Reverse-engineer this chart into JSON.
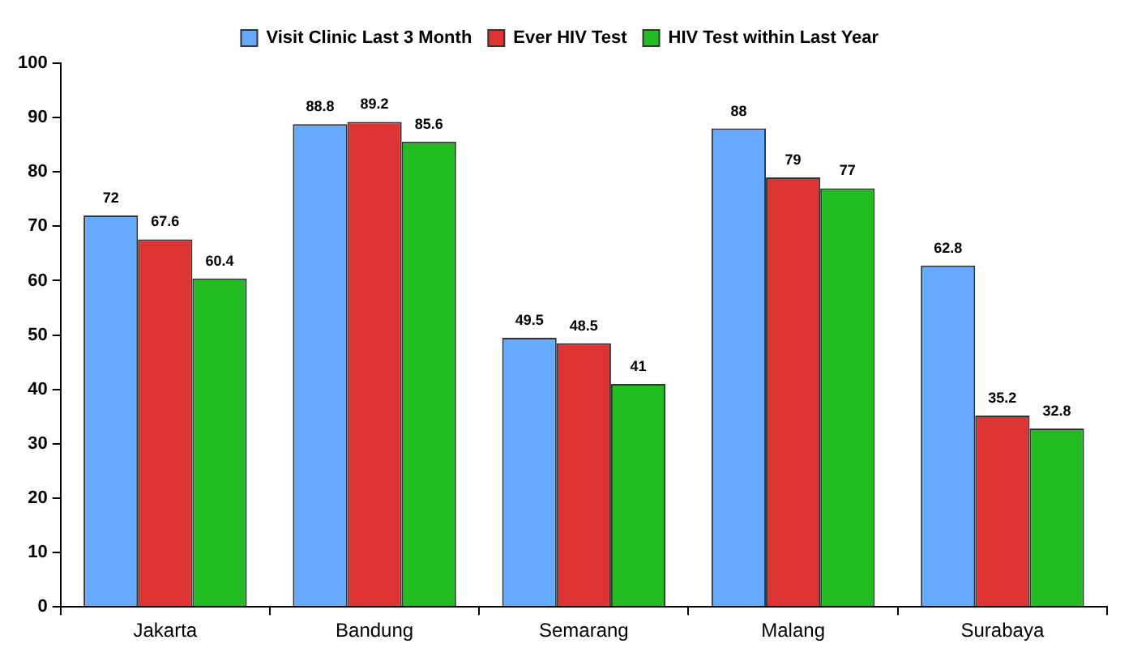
{
  "chart_data": {
    "type": "bar",
    "categories": [
      "Jakarta",
      "Bandung",
      "Semarang",
      "Malang",
      "Surabaya"
    ],
    "series": [
      {
        "name": "Visit Clinic Last 3 Month",
        "color": "#66aaff",
        "values": [
          72,
          88.8,
          49.5,
          88,
          62.8
        ]
      },
      {
        "name": "Ever HIV Test",
        "color": "#dd3333",
        "values": [
          67.6,
          89.2,
          48.5,
          79,
          35.2
        ]
      },
      {
        "name": "HIV Test within Last Year",
        "color": "#22bb22",
        "values": [
          60.4,
          85.6,
          41,
          77,
          32.8
        ]
      }
    ],
    "ylim": [
      0,
      100
    ],
    "yticks": [
      0,
      10,
      20,
      30,
      40,
      50,
      60,
      70,
      80,
      90,
      100
    ],
    "grid": false,
    "legend": "top",
    "data_labels": true
  }
}
